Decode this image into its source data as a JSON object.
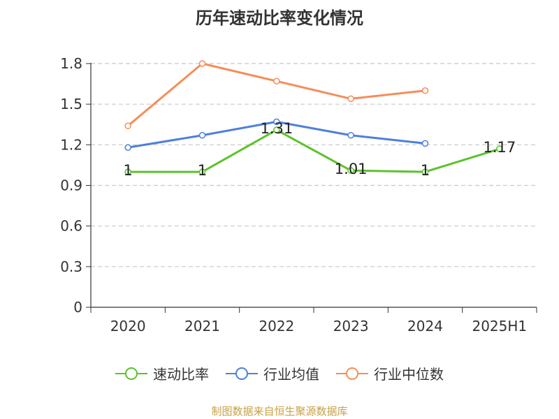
{
  "chart_data": {
    "type": "line",
    "title": "历年速动比率变化情况",
    "categories": [
      "2020",
      "2021",
      "2022",
      "2023",
      "2024",
      "2025H1"
    ],
    "ylim": [
      0,
      1.8
    ],
    "yticks": [
      "0",
      "0.3",
      "0.6",
      "0.9",
      "1.2",
      "1.5",
      "1.8"
    ],
    "grid": true,
    "legend_position": "bottom",
    "series": [
      {
        "name": "速动比率",
        "color": "#5cc22b",
        "values": [
          1.0,
          1.0,
          1.31,
          1.01,
          1.0,
          1.17
        ],
        "labels": [
          "1",
          "1",
          "1.31",
          "1.01",
          "1",
          "1.17"
        ]
      },
      {
        "name": "行业均值",
        "color": "#4e7fdc",
        "values": [
          1.18,
          1.27,
          1.37,
          1.27,
          1.21,
          null
        ]
      },
      {
        "name": "行业中位数",
        "color": "#f58d5a",
        "values": [
          1.34,
          1.8,
          1.67,
          1.54,
          1.6,
          null
        ]
      }
    ],
    "source": "制图数据来自恒生聚源数据库"
  }
}
